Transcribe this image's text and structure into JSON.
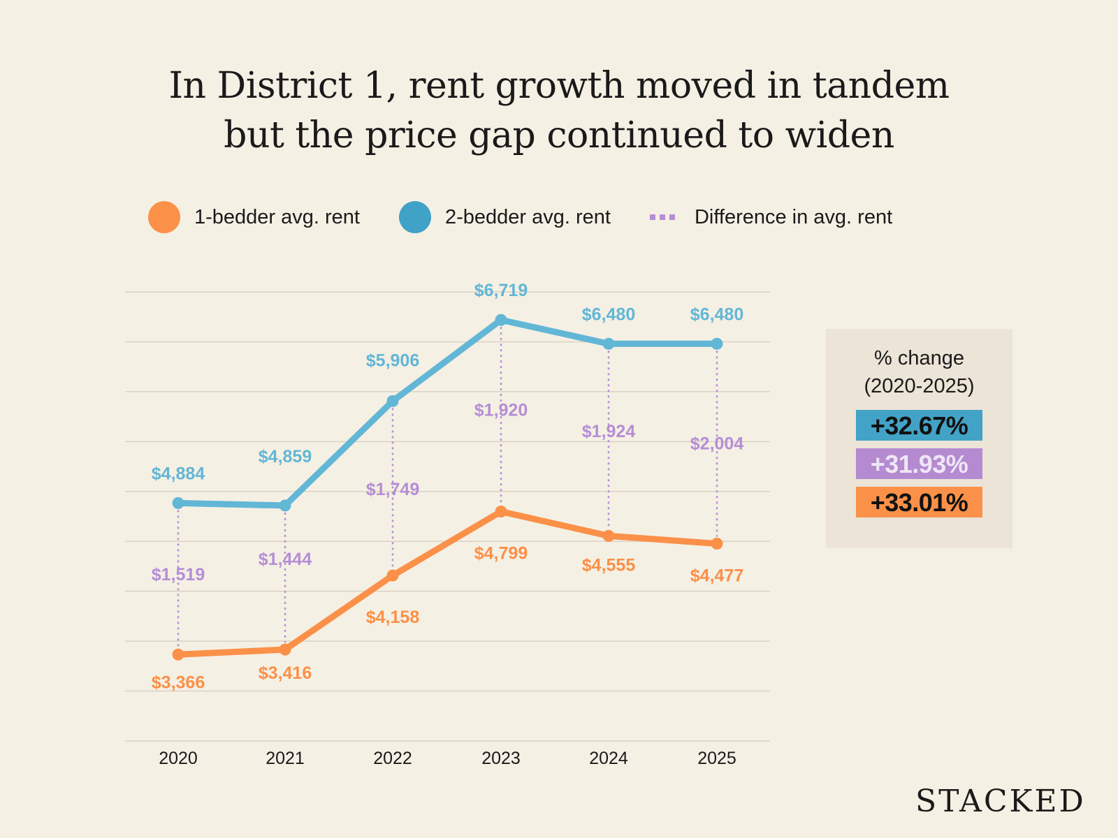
{
  "chart_data": {
    "type": "line",
    "title": "In District 1, rent growth moved in tandem but the price gap continued to widen",
    "title_lines": [
      "In District 1, rent growth moved in tandem",
      "but the price gap continued to widen"
    ],
    "categories": [
      "2020",
      "2021",
      "2022",
      "2023",
      "2024",
      "2025"
    ],
    "series": [
      {
        "name": "1-bedder avg. rent",
        "color": "#fb9048",
        "values": [
          3366,
          3416,
          4158,
          4799,
          4555,
          4477
        ],
        "labels": [
          "$3,366",
          "$3,416",
          "$4,158",
          "$4,799",
          "$4,555",
          "$4,477"
        ]
      },
      {
        "name": "2-bedder avg. rent",
        "color": "#62b6d6",
        "values": [
          4884,
          4859,
          5906,
          6719,
          6480,
          6480
        ],
        "labels": [
          "$4,884",
          "$4,859",
          "$5,906",
          "$6,719",
          "$6,480",
          "$6,480"
        ]
      },
      {
        "name": "Difference in avg. rent",
        "color": "#b58ed6",
        "style": "dotted",
        "values": [
          1519,
          1444,
          1749,
          1920,
          1924,
          2004
        ],
        "labels": [
          "$1,519",
          "$1,444",
          "$1,749",
          "$1,920",
          "$1,924",
          "$2,004"
        ]
      }
    ],
    "ylim": [
      2500,
      7000
    ],
    "ytick_step": 500,
    "yticks_labeled": false,
    "grid": true,
    "legend_position": "top",
    "xlabel": "",
    "ylabel": ""
  },
  "legend": {
    "one_bed": {
      "label": "1-bedder avg. rent",
      "color": "#fb9048"
    },
    "two_bed": {
      "label": "2-bedder avg. rent",
      "color": "#3fa2c6"
    },
    "diff": {
      "label": "Difference in avg. rent",
      "color": "#b58ed6"
    }
  },
  "panel": {
    "title_line1": "% change",
    "title_line2": "(2020-2025)",
    "badges": [
      {
        "value": "+32.67%",
        "bg": "#42a3c6",
        "fg": "#111111"
      },
      {
        "value": "+31.93%",
        "bg": "#b48ad1",
        "fg": "#efe6f5"
      },
      {
        "value": "+33.01%",
        "bg": "#fb9149",
        "fg": "#111111"
      }
    ]
  },
  "logo": "STACKED"
}
